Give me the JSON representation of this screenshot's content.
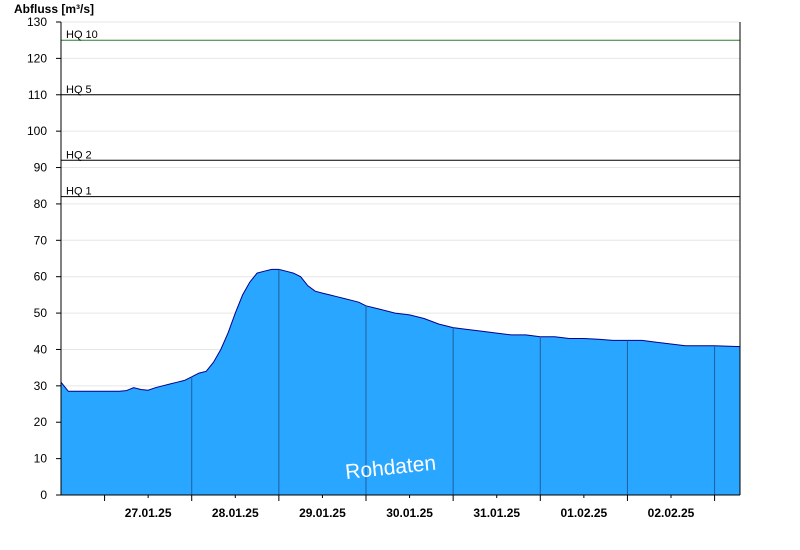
{
  "chart_data": {
    "type": "area",
    "ylabel": "Abfluss [m³/s]",
    "ylim": [
      0,
      130
    ],
    "yticks": [
      0,
      10,
      20,
      30,
      40,
      50,
      60,
      70,
      80,
      90,
      100,
      110,
      120,
      130
    ],
    "xlim": [
      "2025-01-26T12:00",
      "2025-02-03T07:00"
    ],
    "day_labels": [
      "27.01.25",
      "28.01.25",
      "29.01.25",
      "30.01.25",
      "31.01.25",
      "01.02.25",
      "02.02.25"
    ],
    "grid": "horizontal",
    "fill_color": "#29a6ff",
    "line_color": "#00008b",
    "thresholds": [
      {
        "label": "HQ 1",
        "value": 82,
        "color": "#000000"
      },
      {
        "label": "HQ 2",
        "value": 92,
        "color": "#000000"
      },
      {
        "label": "HQ 5",
        "value": 110,
        "color": "#000000"
      },
      {
        "label": "HQ 10",
        "value": 125,
        "color": "#2e7d32"
      }
    ],
    "watermark": "Rohdaten",
    "series": [
      {
        "x": [
          "2025-01-26T12:00",
          "2025-01-26T14:00",
          "2025-01-26T16:00",
          "2025-01-26T18:00",
          "2025-01-26T20:00",
          "2025-01-26T22:00",
          "2025-01-27T00:00",
          "2025-01-27T02:00",
          "2025-01-27T04:00",
          "2025-01-27T06:00",
          "2025-01-27T08:00",
          "2025-01-27T10:00",
          "2025-01-27T12:00",
          "2025-01-27T14:00",
          "2025-01-27T16:00",
          "2025-01-27T18:00",
          "2025-01-27T20:00",
          "2025-01-27T22:00",
          "2025-01-28T00:00",
          "2025-01-28T02:00",
          "2025-01-28T04:00",
          "2025-01-28T06:00",
          "2025-01-28T08:00",
          "2025-01-28T10:00",
          "2025-01-28T12:00",
          "2025-01-28T14:00",
          "2025-01-28T16:00",
          "2025-01-28T18:00",
          "2025-01-28T20:00",
          "2025-01-28T22:00",
          "2025-01-29T00:00",
          "2025-01-29T02:00",
          "2025-01-29T04:00",
          "2025-01-29T06:00",
          "2025-01-29T08:00",
          "2025-01-29T10:00",
          "2025-01-29T12:00",
          "2025-01-29T14:00",
          "2025-01-29T16:00",
          "2025-01-29T18:00",
          "2025-01-29T20:00",
          "2025-01-29T22:00",
          "2025-01-30T00:00",
          "2025-01-30T04:00",
          "2025-01-30T08:00",
          "2025-01-30T12:00",
          "2025-01-30T16:00",
          "2025-01-30T20:00",
          "2025-01-31T00:00",
          "2025-01-31T04:00",
          "2025-01-31T08:00",
          "2025-01-31T12:00",
          "2025-01-31T16:00",
          "2025-01-31T20:00",
          "2025-02-01T00:00",
          "2025-02-01T04:00",
          "2025-02-01T08:00",
          "2025-02-01T12:00",
          "2025-02-01T16:00",
          "2025-02-01T20:00",
          "2025-02-02T00:00",
          "2025-02-02T04:00",
          "2025-02-02T08:00",
          "2025-02-02T12:00",
          "2025-02-02T16:00",
          "2025-02-02T20:00",
          "2025-02-03T00:00",
          "2025-02-03T07:00"
        ],
        "values": [
          31,
          28.5,
          28.5,
          28.5,
          28.5,
          28.5,
          28.5,
          28.5,
          28.5,
          28.7,
          29.5,
          29,
          28.8,
          29.5,
          30,
          30.5,
          31,
          31.5,
          32.5,
          33.5,
          34,
          36.5,
          40,
          44.5,
          50,
          55,
          58.5,
          61,
          61.5,
          62,
          62,
          61.5,
          61,
          60,
          57.5,
          56,
          55.5,
          55,
          54.5,
          54,
          53.5,
          53,
          52,
          51,
          50,
          49.5,
          48.5,
          47,
          46,
          45.5,
          45,
          44.5,
          44,
          44,
          43.5,
          43.5,
          43,
          43,
          42.8,
          42.5,
          42.5,
          42.5,
          42,
          41.5,
          41,
          41,
          41,
          40.8
        ]
      }
    ]
  }
}
